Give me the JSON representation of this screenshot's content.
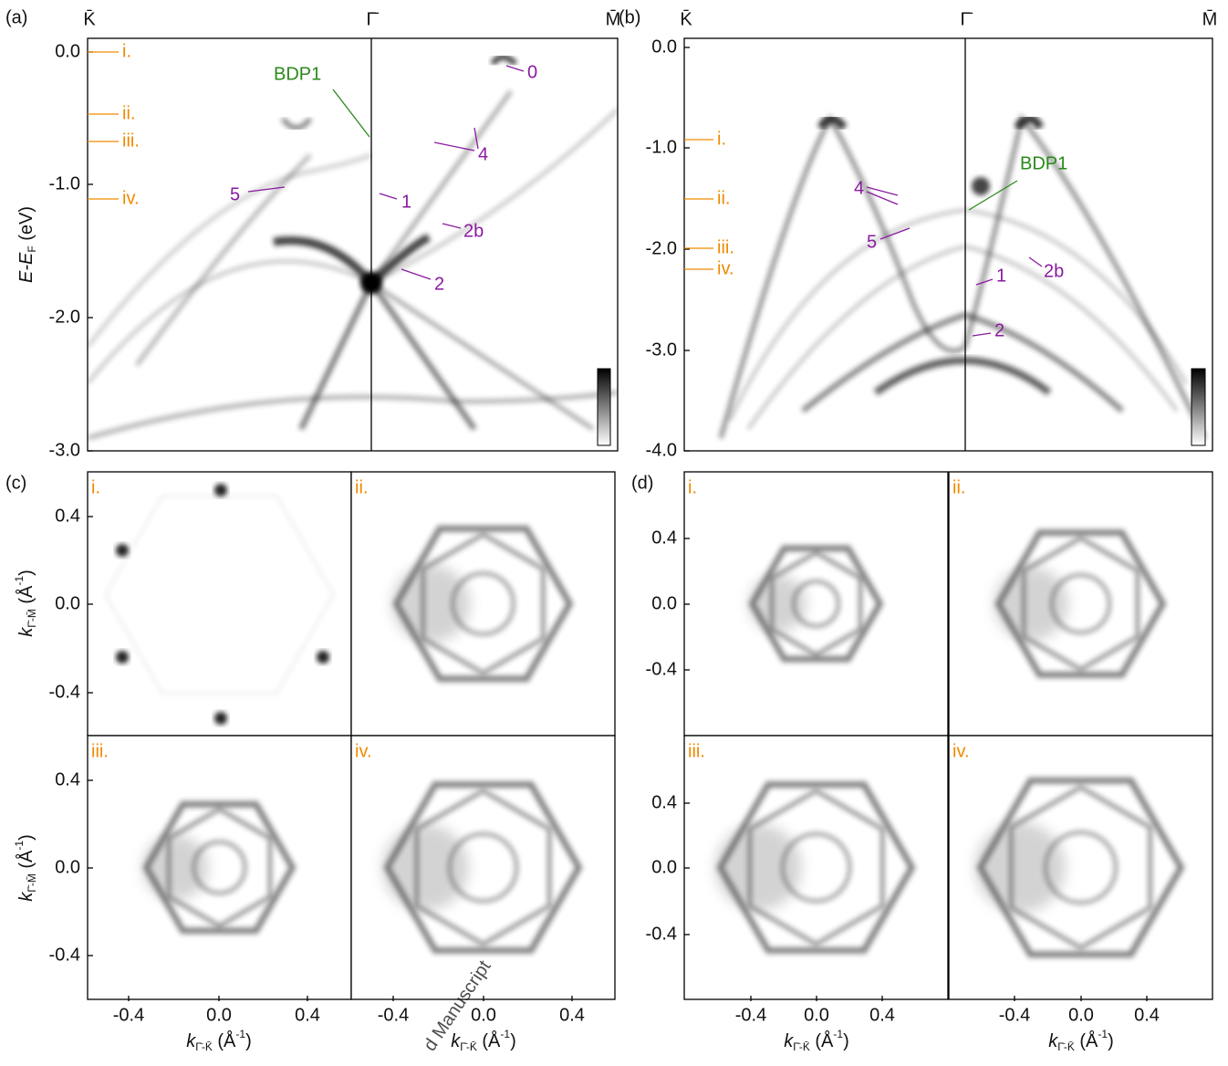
{
  "panel_a": {
    "label": "(a)",
    "top_labels": [
      "K̄",
      "Γ̄",
      "M̄"
    ],
    "y_label": {
      "main": "E-E",
      "sub": "F",
      "unit": " (eV)"
    },
    "y_ticks": [
      "0.0",
      "-1.0",
      "-2.0",
      "-3.0"
    ],
    "cuts": [
      "i.",
      "ii.",
      "iii.",
      "iv."
    ],
    "annotations": [
      "BDP1",
      "0",
      "4",
      "1",
      "2b",
      "2",
      "5"
    ]
  },
  "panel_b": {
    "label": "(b)",
    "top_labels": [
      "K̄",
      "Γ̄",
      "M̄"
    ],
    "y_ticks": [
      "0.0",
      "-1.0",
      "-2.0",
      "-3.0",
      "-4.0"
    ],
    "cuts": [
      "i.",
      "ii.",
      "iii.",
      "iv."
    ],
    "annotations": [
      "BDP1",
      "4",
      "5",
      "1",
      "2b",
      "2"
    ]
  },
  "panel_c": {
    "label": "(c)",
    "sub_labels": [
      "i.",
      "ii.",
      "iii.",
      "iv."
    ],
    "y_label": {
      "main": "k",
      "sub": "Γ̄-M̄",
      "unit": " (Å",
      "exp": "-1",
      "close": ")"
    },
    "x_label": {
      "main": "k",
      "sub": "Γ̄-K̄",
      "unit": " (Å",
      "exp": "-1",
      "close": ")"
    },
    "y_ticks": [
      "0.4",
      "0.0",
      "-0.4"
    ],
    "x_ticks": [
      "-0.4",
      "0.0",
      "0.4"
    ]
  },
  "panel_d": {
    "label": "(d)",
    "sub_labels": [
      "i.",
      "ii.",
      "iii.",
      "iv."
    ],
    "x_label": {
      "main": "k",
      "sub": "Γ̄-K̄",
      "unit": " (Å",
      "exp": "-1",
      "close": ")"
    },
    "y_ticks": [
      "0.4",
      "0.0",
      "-0.4"
    ],
    "x_ticks": [
      "-0.4",
      "0.0",
      "0.4"
    ]
  },
  "watermark": "d Manuscript"
}
